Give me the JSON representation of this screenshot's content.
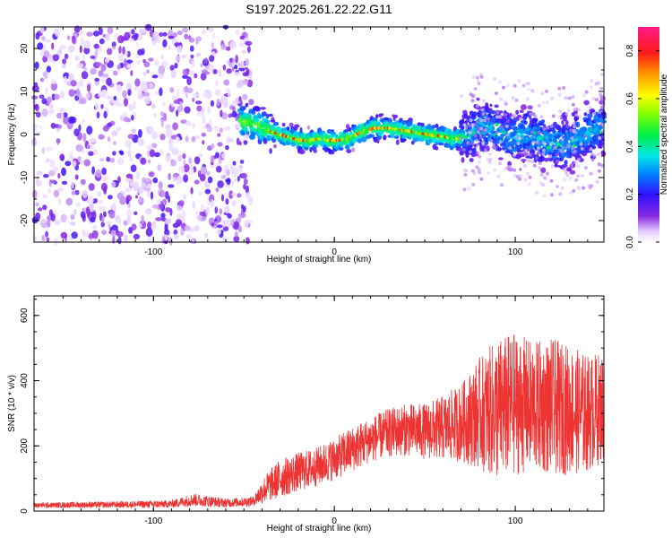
{
  "title": "S197.2025.261.22.22.G11",
  "chart_data": [
    {
      "type": "heatmap",
      "name": "spectrogram",
      "xlabel": "Height of straight line (km)",
      "ylabel": "Frequency (Hz)",
      "xlim": [
        -166,
        149
      ],
      "ylim": [
        -25,
        25
      ],
      "xticks": [
        -100,
        0,
        100
      ],
      "yticks": [
        -20,
        -10,
        0,
        10,
        20
      ],
      "ridge": {
        "x": [
          -52,
          -45,
          -38,
          -30,
          -22,
          -15,
          -8,
          0,
          8,
          15,
          22,
          30,
          38,
          45,
          52,
          60,
          68,
          75,
          82,
          90,
          98,
          105,
          112,
          120,
          128,
          135,
          142,
          149
        ],
        "frequency": [
          3,
          2.5,
          1.5,
          0,
          -1,
          -1.5,
          -1,
          -1.5,
          -1,
          0.5,
          1.5,
          1.5,
          1,
          0.5,
          0,
          -0.5,
          -1,
          0,
          2,
          1,
          -1,
          0,
          -1,
          -2,
          -2,
          -1,
          0.5,
          2
        ]
      },
      "noise_region_x": [
        -166,
        -50
      ],
      "colorbar": {
        "label": "Normalized spectral amplitude",
        "range": [
          0.0,
          0.9
        ],
        "ticks": [
          0.0,
          0.2,
          0.4,
          0.6,
          0.8
        ],
        "tick_labels": [
          "0.0",
          "0.2",
          "0.4",
          "0.6",
          "0.8"
        ]
      }
    },
    {
      "type": "line",
      "name": "snr",
      "xlabel": "Height of straight line (km)",
      "ylabel": "SNR (10 * v/v)",
      "xlim": [
        -166,
        149
      ],
      "ylim": [
        0,
        660
      ],
      "xticks": [
        -100,
        0,
        100
      ],
      "yticks": [
        0,
        200,
        400,
        600
      ],
      "color": "#ee3333",
      "envelope": {
        "x": [
          -166,
          -120,
          -90,
          -78,
          -60,
          -45,
          -38,
          -30,
          -20,
          -10,
          0,
          10,
          20,
          30,
          40,
          50,
          60,
          70,
          80,
          90,
          100,
          110,
          120,
          130,
          140,
          149
        ],
        "mean": [
          18,
          20,
          22,
          35,
          25,
          30,
          70,
          100,
          120,
          135,
          160,
          190,
          220,
          240,
          250,
          245,
          255,
          270,
          300,
          310,
          330,
          320,
          320,
          310,
          300,
          320
        ],
        "amplitude": [
          8,
          10,
          12,
          20,
          14,
          15,
          45,
          60,
          60,
          60,
          65,
          70,
          70,
          75,
          80,
          85,
          100,
          120,
          170,
          220,
          220,
          200,
          210,
          200,
          180,
          170
        ]
      }
    }
  ]
}
